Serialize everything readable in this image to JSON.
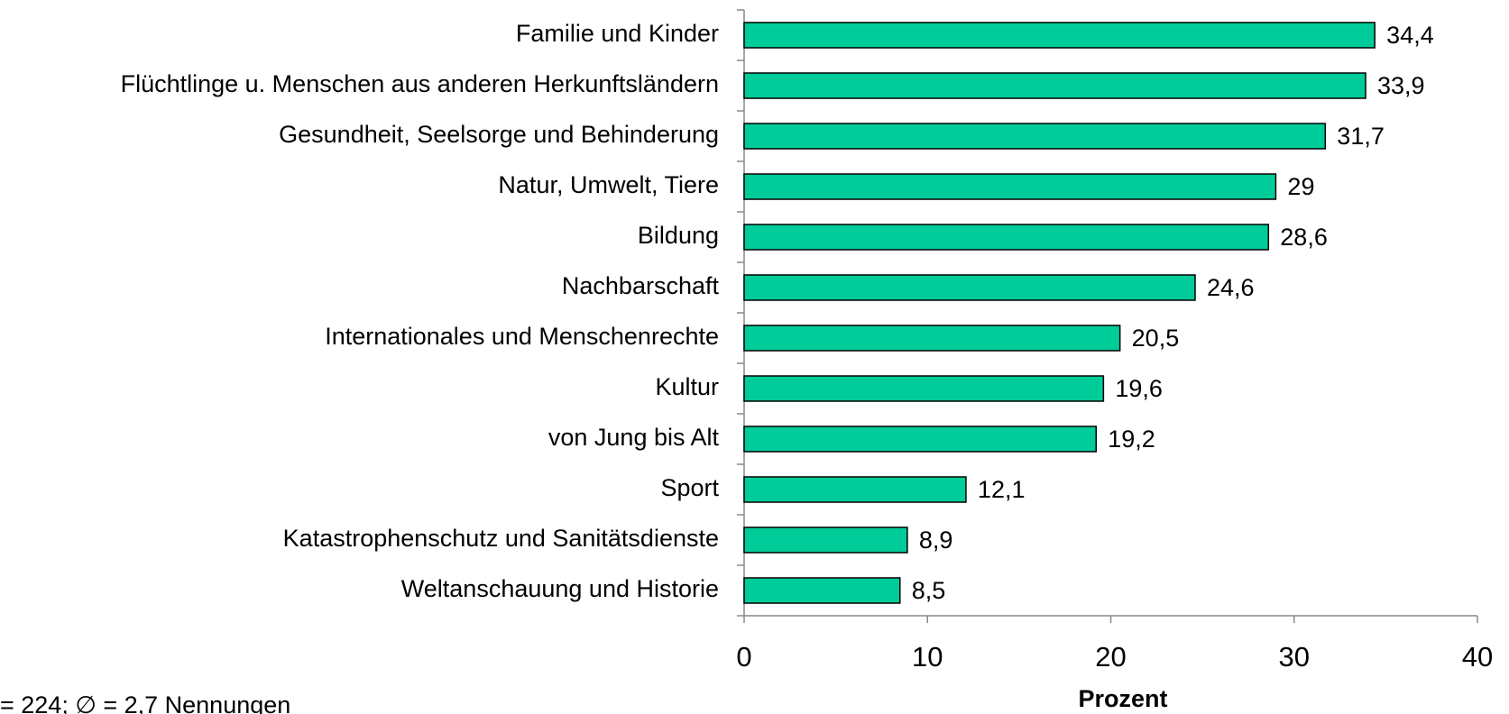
{
  "chart_data": {
    "type": "hbar",
    "categories": [
      "Familie und Kinder",
      "Flüchtlinge u. Menschen aus anderen Herkunftsländern",
      "Gesundheit, Seelsorge und Behinderung",
      "Natur, Umwelt, Tiere",
      "Bildung",
      "Nachbarschaft",
      "Internationales und Menschenrechte",
      "Kultur",
      "von Jung bis Alt",
      "Sport",
      "Katastrophenschutz und Sanitätsdienste",
      "Weltanschauung und Historie"
    ],
    "values": [
      34.4,
      33.9,
      31.7,
      29,
      28.6,
      24.6,
      20.5,
      19.6,
      19.2,
      12.1,
      8.9,
      8.5
    ],
    "value_labels": [
      "34,4",
      "33,9",
      "31,7",
      "29",
      "28,6",
      "24,6",
      "20,5",
      "19,6",
      "19,2",
      "12,1",
      "8,9",
      "8,5"
    ],
    "color": "#00cc99",
    "xlim": [
      0,
      40
    ],
    "xticks": [
      0,
      10,
      20,
      30,
      40
    ],
    "xlabel": "Prozent",
    "note": "= 224; ∅ = 2,7 Nennungen"
  }
}
